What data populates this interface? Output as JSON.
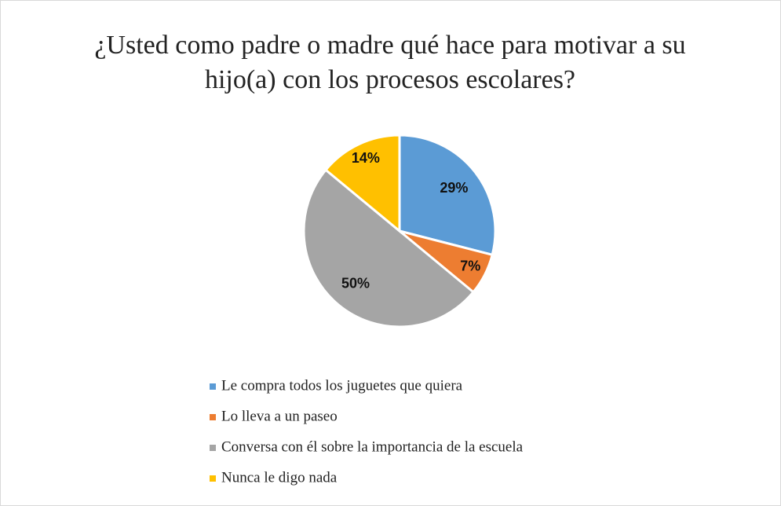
{
  "chart_data": {
    "type": "pie",
    "title": "¿Usted como padre o madre qué hace para motivar a su hijo(a) con los procesos escolares?",
    "categories": [
      "Le compra todos los juguetes que quiera",
      "Lo lleva a un paseo",
      "Conversa con él sobre la importancia de la escuela",
      "Nunca le digo nada"
    ],
    "values": [
      29,
      7,
      50,
      14
    ],
    "value_labels": [
      "29%",
      "7%",
      "50%",
      "14%"
    ],
    "colors": [
      "#5b9bd5",
      "#ed7d31",
      "#a5a5a5",
      "#ffc000"
    ],
    "legend": "bottom"
  }
}
